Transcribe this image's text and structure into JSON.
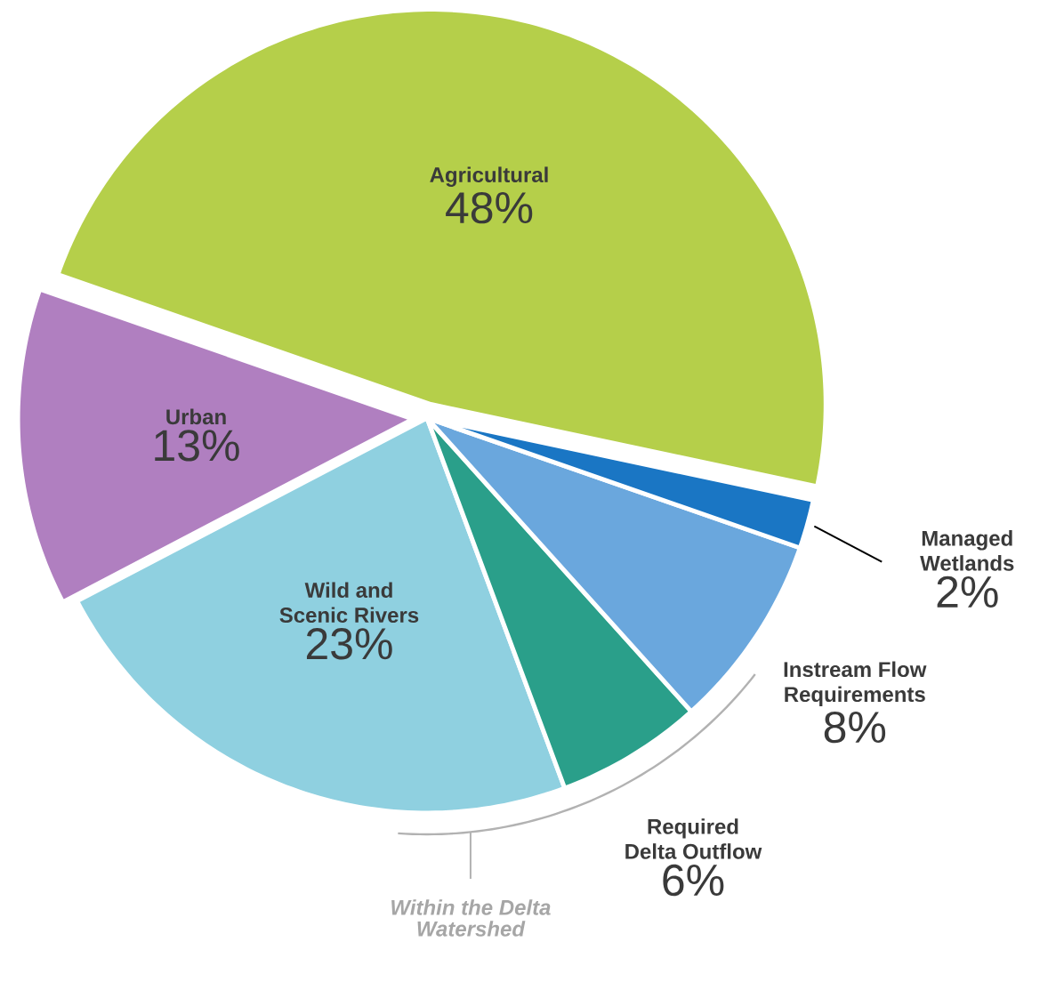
{
  "chart_data": {
    "type": "pie",
    "categories": [
      "Agricultural",
      "Urban",
      "Wild and Scenic Rivers",
      "Required Delta Outflow",
      "Instream Flow Requirements",
      "Managed Wetlands"
    ],
    "values": [
      48,
      13,
      23,
      6,
      8,
      2
    ],
    "colors": [
      "#b5cf4a",
      "#b07fc0",
      "#8fd0e0",
      "#2a9f8a",
      "#6aa7dd",
      "#1a76c4"
    ],
    "value_labels": [
      "48%",
      "13%",
      "23%",
      "6%",
      "8%",
      "2%"
    ],
    "annotations": [
      "Within the Delta Watershed"
    ]
  }
}
